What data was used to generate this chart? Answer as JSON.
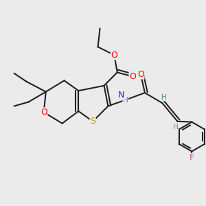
{
  "bg_color": "#ebebeb",
  "atom_colors": {
    "S": "#b8a000",
    "O": "#ff0000",
    "N": "#2222cc",
    "F": "#cc44aa",
    "C": "#222222",
    "H": "#558888"
  },
  "bond_color": "#222222",
  "bond_width": 1.5,
  "font_size_heavy": 9,
  "font_size_H": 7.5
}
